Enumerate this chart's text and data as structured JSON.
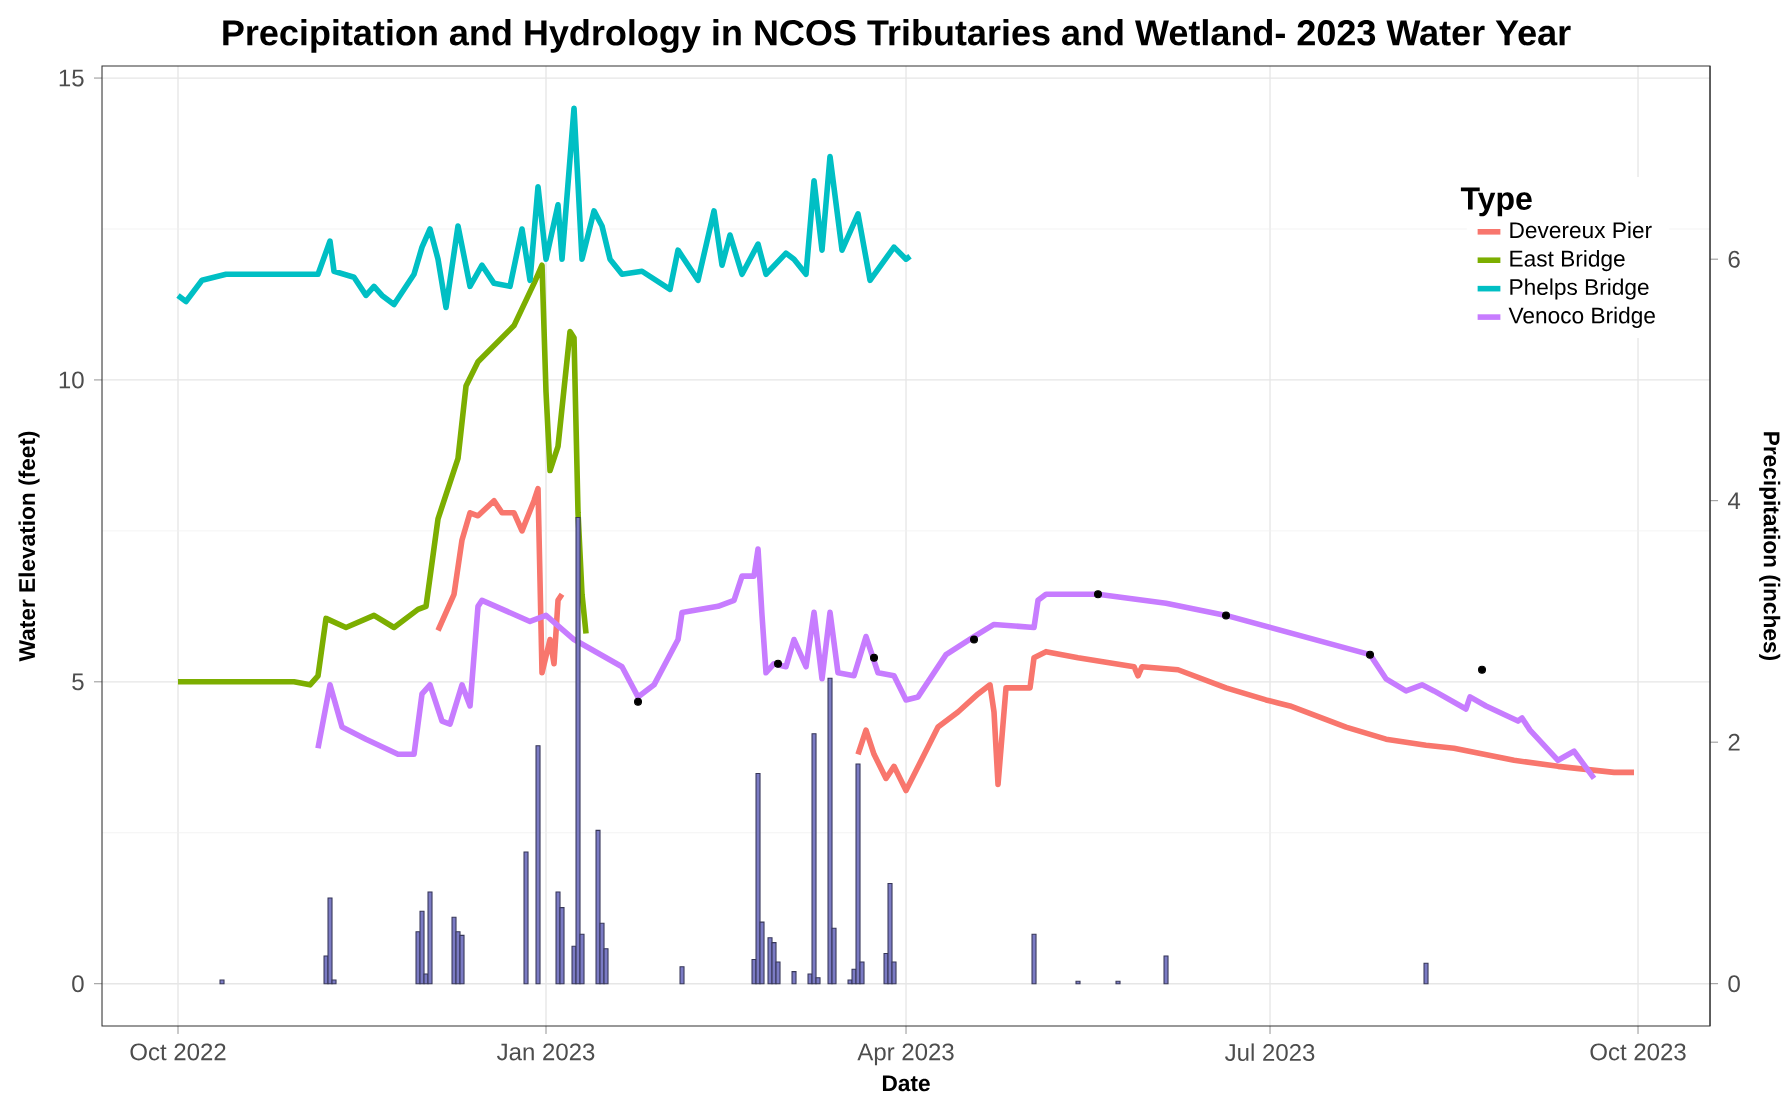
{
  "chart_data": {
    "type": "line",
    "title": "Precipitation and Hydrology in NCOS Tributaries and Wetland- 2023 Water Year",
    "xlabel": "Date",
    "ylabel": "Water Elevation (feet)",
    "y2label": "Precipitation (inches)",
    "legend_title": "Type",
    "legend": "top right",
    "grid": true,
    "xlim": [
      "2022-09-12",
      "2023-10-19"
    ],
    "xticks": [
      {
        "value": "2022-10-01",
        "label": "Oct 2022"
      },
      {
        "value": "2023-01-01",
        "label": "Jan 2023"
      },
      {
        "value": "2023-04-01",
        "label": "Apr 2023"
      },
      {
        "value": "2023-07-01",
        "label": "Jul 2023"
      },
      {
        "value": "2023-10-01",
        "label": "Oct 2023"
      }
    ],
    "ylim": [
      -0.7,
      15.2
    ],
    "yticks": [
      0,
      5,
      10,
      15
    ],
    "y2lim": [
      -0.35,
      7.6
    ],
    "y2ticks": [
      0,
      2,
      4,
      6
    ],
    "series": [
      {
        "name": "Devereux Pier",
        "color": "#f8766d",
        "x": [
          "2022-12-05",
          "2022-12-09",
          "2022-12-11",
          "2022-12-13",
          "2022-12-15",
          "2022-12-19",
          "2022-12-21",
          "2022-12-24",
          "2022-12-26",
          "2022-12-29",
          "2022-12-30",
          "2022-12-31",
          "2023-01-02",
          "2023-01-03",
          "2023-01-04",
          "2023-01-05",
          "2023-02-15",
          "2023-03-20",
          "2023-03-22",
          "2023-03-24",
          "2023-03-27",
          "2023-03-29",
          "2023-04-01",
          "2023-04-09",
          "2023-04-14",
          "2023-04-19",
          "2023-04-22",
          "2023-04-23",
          "2023-04-24",
          "2023-04-26",
          "2023-05-02",
          "2023-05-03",
          "2023-05-06",
          "2023-05-14",
          "2023-05-28",
          "2023-05-29",
          "2023-05-30",
          "2023-06-08",
          "2023-06-20",
          "2023-06-30",
          "2023-07-03",
          "2023-07-06",
          "2023-07-20",
          "2023-07-30",
          "2023-08-09",
          "2023-08-16",
          "2023-08-31",
          "2023-09-11",
          "2023-09-25",
          "2023-09-30"
        ],
        "values": [
          5.85,
          6.45,
          7.35,
          7.8,
          7.75,
          8.0,
          7.8,
          7.8,
          7.5,
          8.0,
          8.2,
          5.15,
          5.7,
          5.3,
          6.35,
          6.45,
          null,
          3.8,
          4.2,
          3.8,
          3.4,
          3.6,
          3.2,
          4.25,
          4.5,
          4.8,
          4.95,
          4.5,
          3.3,
          4.9,
          4.9,
          5.4,
          5.5,
          5.4,
          5.25,
          5.1,
          5.25,
          5.2,
          4.9,
          4.7,
          4.65,
          4.6,
          4.25,
          4.05,
          3.95,
          3.9,
          3.7,
          3.6,
          3.5,
          3.5
        ]
      },
      {
        "name": "East Bridge",
        "color": "#7cae00",
        "x": [
          "2022-10-01",
          "2022-10-15",
          "2022-10-30",
          "2022-11-03",
          "2022-11-05",
          "2022-11-07",
          "2022-11-12",
          "2022-11-19",
          "2022-11-24",
          "2022-11-30",
          "2022-12-02",
          "2022-12-05",
          "2022-12-10",
          "2022-12-12",
          "2022-12-15",
          "2022-12-24",
          "2022-12-29",
          "2022-12-30",
          "2022-12-31",
          "2023-01-01",
          "2023-01-02",
          "2023-01-04",
          "2023-01-07",
          "2023-01-08",
          "2023-01-09",
          "2023-01-10",
          "2023-01-11"
        ],
        "values": [
          5.0,
          5.0,
          5.0,
          4.95,
          5.1,
          6.05,
          5.9,
          6.1,
          5.9,
          6.2,
          6.25,
          7.7,
          8.7,
          9.9,
          10.3,
          10.9,
          11.6,
          11.75,
          11.9,
          9.8,
          8.5,
          8.9,
          10.8,
          10.7,
          7.8,
          6.45,
          5.8
        ]
      },
      {
        "name": "Phelps Bridge",
        "color": "#00bfc4",
        "x": [
          "2022-10-01",
          "2022-10-03",
          "2022-10-07",
          "2022-10-13",
          "2022-11-05",
          "2022-11-08",
          "2022-11-09",
          "2022-11-14",
          "2022-11-17",
          "2022-11-19",
          "2022-11-21",
          "2022-11-24",
          "2022-11-29",
          "2022-12-01",
          "2022-12-03",
          "2022-12-05",
          "2022-12-07",
          "2022-12-10",
          "2022-12-13",
          "2022-12-16",
          "2022-12-19",
          "2022-12-23",
          "2022-12-26",
          "2022-12-28",
          "2022-12-30",
          "2023-01-01",
          "2023-01-04",
          "2023-01-05",
          "2023-01-08",
          "2023-01-10",
          "2023-01-13",
          "2023-01-15",
          "2023-01-17",
          "2023-01-20",
          "2023-01-25",
          "2023-02-01",
          "2023-02-03",
          "2023-02-08",
          "2023-02-12",
          "2023-02-14",
          "2023-02-16",
          "2023-02-19",
          "2023-02-23",
          "2023-02-25",
          "2023-03-02",
          "2023-03-04",
          "2023-03-07",
          "2023-03-09",
          "2023-03-11",
          "2023-03-13",
          "2023-03-16",
          "2023-03-20",
          "2023-03-23",
          "2023-03-29",
          "2023-04-01",
          "2023-04-02"
        ],
        "values": [
          11.4,
          11.3,
          11.65,
          11.75,
          11.75,
          12.3,
          11.8,
          11.7,
          11.4,
          11.55,
          11.4,
          11.25,
          11.75,
          12.2,
          12.5,
          12.0,
          11.2,
          12.55,
          11.55,
          11.9,
          11.6,
          11.55,
          12.5,
          11.65,
          13.2,
          12.0,
          12.9,
          12.0,
          14.5,
          12.0,
          12.8,
          12.55,
          12.0,
          11.75,
          11.8,
          11.5,
          12.15,
          11.65,
          12.8,
          11.9,
          12.4,
          11.75,
          12.25,
          11.75,
          12.1,
          12.0,
          11.75,
          13.3,
          12.15,
          13.7,
          12.15,
          12.75,
          11.65,
          12.2,
          12.0,
          12.05
        ]
      },
      {
        "name": "Venoco Bridge",
        "color": "#c77cff",
        "x": [
          "2022-11-05",
          "2022-11-08",
          "2022-11-11",
          "2022-11-17",
          "2022-11-25",
          "2022-11-29",
          "2022-12-01",
          "2022-12-03",
          "2022-12-06",
          "2022-12-08",
          "2022-12-11",
          "2022-12-13",
          "2022-12-15",
          "2022-12-16",
          "2022-12-28",
          "2023-01-01",
          "2023-01-08",
          "2023-01-20",
          "2023-01-24",
          "2023-01-28",
          "2023-02-03",
          "2023-02-04",
          "2023-02-13",
          "2023-02-17",
          "2023-02-19",
          "2023-02-22",
          "2023-02-23",
          "2023-02-24",
          "2023-02-25",
          "2023-02-27",
          "2023-03-02",
          "2023-03-04",
          "2023-03-07",
          "2023-03-09",
          "2023-03-11",
          "2023-03-13",
          "2023-03-15",
          "2023-03-19",
          "2023-03-22",
          "2023-03-25",
          "2023-03-29",
          "2023-04-01",
          "2023-04-04",
          "2023-04-11",
          "2023-04-18",
          "2023-04-23",
          "2023-05-03",
          "2023-05-04",
          "2023-05-06",
          "2023-05-19",
          "2023-06-05",
          "2023-06-20",
          "2023-07-26",
          "2023-07-30",
          "2023-08-04",
          "2023-08-08",
          "2023-08-11",
          "2023-08-19",
          "2023-08-20",
          "2023-08-24",
          "2023-09-01",
          "2023-09-02",
          "2023-09-04",
          "2023-09-11",
          "2023-09-15",
          "2023-09-20"
        ],
        "values": [
          3.9,
          4.95,
          4.25,
          4.05,
          3.8,
          3.8,
          4.8,
          4.95,
          4.35,
          4.3,
          4.95,
          4.6,
          6.25,
          6.35,
          6.0,
          6.1,
          5.7,
          5.25,
          4.75,
          4.95,
          5.7,
          6.15,
          6.25,
          6.35,
          6.75,
          6.75,
          7.2,
          6.1,
          5.15,
          5.3,
          5.25,
          5.7,
          5.25,
          6.15,
          5.05,
          6.15,
          5.15,
          5.1,
          5.75,
          5.15,
          5.1,
          4.7,
          4.75,
          5.45,
          5.75,
          5.95,
          5.9,
          6.35,
          6.45,
          6.45,
          6.3,
          6.1,
          5.45,
          5.05,
          4.85,
          4.95,
          4.85,
          4.55,
          4.75,
          4.6,
          4.35,
          4.4,
          4.2,
          3.7,
          3.85,
          3.4
        ]
      },
      {
        "color": "#000000",
        "type": "scatter",
        "x": [
          "2023-01-24",
          "2023-02-28",
          "2023-03-24",
          "2023-04-18",
          "2023-05-19",
          "2023-06-20",
          "2023-07-26",
          "2023-08-23"
        ],
        "values": [
          4.67,
          5.3,
          5.4,
          5.7,
          6.45,
          6.1,
          5.45,
          5.2
        ]
      },
      {
        "color": "#7b7bc4",
        "type": "bar",
        "axis": "y2",
        "x": [
          "2022-10-12",
          "2022-11-07",
          "2022-11-08",
          "2022-11-09",
          "2022-11-30",
          "2022-12-01",
          "2022-12-02",
          "2022-12-03",
          "2022-12-09",
          "2022-12-10",
          "2022-12-11",
          "2022-12-27",
          "2022-12-30",
          "2023-01-04",
          "2023-01-05",
          "2023-01-08",
          "2023-01-09",
          "2023-01-10",
          "2023-01-14",
          "2023-01-15",
          "2023-01-16",
          "2023-02-04",
          "2023-02-22",
          "2023-02-23",
          "2023-02-24",
          "2023-02-26",
          "2023-02-27",
          "2023-02-28",
          "2023-03-04",
          "2023-03-08",
          "2023-03-09",
          "2023-03-10",
          "2023-03-13",
          "2023-03-14",
          "2023-03-18",
          "2023-03-19",
          "2023-03-20",
          "2023-03-21",
          "2023-03-27",
          "2023-03-28",
          "2023-03-29",
          "2023-05-03",
          "2023-05-14",
          "2023-05-24",
          "2023-06-05",
          "2023-08-09"
        ],
        "values": [
          0.03,
          0.23,
          0.71,
          0.03,
          0.43,
          0.6,
          0.08,
          0.76,
          0.55,
          0.43,
          0.4,
          1.09,
          1.97,
          0.76,
          0.63,
          0.31,
          3.86,
          0.41,
          1.27,
          0.5,
          0.29,
          0.14,
          0.2,
          1.74,
          0.51,
          0.38,
          0.34,
          0.18,
          0.1,
          0.08,
          2.07,
          0.05,
          2.53,
          0.46,
          0.03,
          0.12,
          1.82,
          0.18,
          0.25,
          0.83,
          0.18,
          0.41,
          0.02,
          0.02,
          0.23,
          0.17
        ]
      }
    ]
  }
}
